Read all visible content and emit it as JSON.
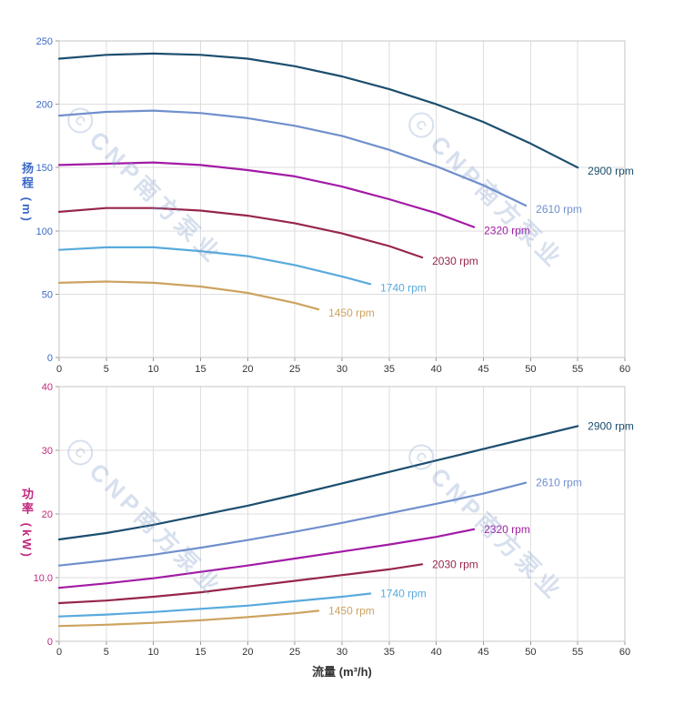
{
  "watermark": {
    "text": "CNP南方泵业",
    "logo": "C"
  },
  "colors": {
    "grid": "#dedede",
    "border": "#c6c6c6",
    "tick": "#999999",
    "x_tick": "#333333"
  },
  "chart_data": [
    {
      "id": "head",
      "type": "line",
      "title": "",
      "ylabel": "扬程 (m)",
      "xlabel": "",
      "x_range": [
        0,
        60
      ],
      "y_range": [
        0,
        250
      ],
      "x_ticks": [
        0,
        5,
        10,
        15,
        20,
        25,
        30,
        35,
        40,
        45,
        50,
        55,
        60
      ],
      "x_tick_labels": [
        "0",
        "5",
        "10",
        "15",
        "20",
        "25",
        "30",
        "35",
        "40",
        "45",
        "50",
        "55",
        "60"
      ],
      "y_ticks": [
        0,
        50,
        100,
        150,
        200,
        250
      ],
      "y_tick_labels": [
        "0",
        "50",
        "100",
        "150",
        "200",
        "250"
      ],
      "axis_color": "#3a68c8",
      "grid": true,
      "legend_position": "end-of-curve",
      "label_offset": [
        11,
        8
      ],
      "series": [
        {
          "name": "2900 rpm",
          "color": "#1c4e6e",
          "x": [
            0,
            5,
            10,
            15,
            20,
            25,
            30,
            35,
            40,
            45,
            50,
            55
          ],
          "y": [
            236,
            239,
            240,
            239,
            236,
            230,
            222,
            212,
            200,
            186,
            169,
            150
          ]
        },
        {
          "name": "2610 rpm",
          "color": "#708fcd",
          "x": [
            0,
            5,
            10,
            15,
            20,
            25,
            30,
            35,
            40,
            45,
            49.5
          ],
          "y": [
            191,
            194,
            195,
            193,
            189,
            183,
            175,
            164,
            151,
            136,
            120
          ]
        },
        {
          "name": "2320 rpm",
          "color": "#a21ba5",
          "x": [
            0,
            5,
            10,
            15,
            20,
            25,
            30,
            35,
            40,
            44
          ],
          "y": [
            152,
            153,
            154,
            152,
            148,
            143,
            135,
            125,
            114,
            103
          ]
        },
        {
          "name": "2030 rpm",
          "color": "#97264b",
          "x": [
            0,
            5,
            10,
            15,
            20,
            25,
            30,
            35,
            38.5
          ],
          "y": [
            115,
            118,
            118,
            116,
            112,
            106,
            98,
            88,
            79
          ]
        },
        {
          "name": "1740 rpm",
          "color": "#58aadc",
          "x": [
            0,
            5,
            10,
            15,
            20,
            25,
            30,
            33
          ],
          "y": [
            85,
            87,
            87,
            84,
            80,
            73,
            64,
            58
          ]
        },
        {
          "name": "1450 rpm",
          "color": "#cda360",
          "x": [
            0,
            5,
            10,
            15,
            20,
            25,
            27.5
          ],
          "y": [
            59,
            60,
            59,
            56,
            51,
            43,
            38
          ]
        }
      ]
    },
    {
      "id": "power",
      "type": "line",
      "title": "",
      "ylabel": "功率 (kW)",
      "xlabel": "流量 (m³/h)",
      "x_range": [
        0,
        60
      ],
      "y_range": [
        0,
        40
      ],
      "x_ticks": [
        0,
        5,
        10,
        15,
        20,
        25,
        30,
        35,
        40,
        45,
        50,
        55,
        60
      ],
      "x_tick_labels": [
        "0",
        "5",
        "10",
        "15",
        "20",
        "25",
        "30",
        "35",
        "40",
        "45",
        "50",
        "55",
        "60"
      ],
      "y_ticks": [
        0,
        10,
        20,
        30,
        40
      ],
      "y_tick_labels": [
        "0",
        "10.0",
        "20",
        "30",
        "40"
      ],
      "axis_color": "#c2277e",
      "grid": true,
      "legend_position": "end-of-curve",
      "label_offset": [
        11,
        4
      ],
      "series": [
        {
          "name": "2900 rpm",
          "color": "#1c4e6e",
          "x": [
            0,
            5,
            10,
            15,
            20,
            25,
            30,
            35,
            40,
            45,
            50,
            55
          ],
          "y": [
            16,
            17,
            18.3,
            19.8,
            21.3,
            23,
            24.8,
            26.6,
            28.4,
            30.2,
            32,
            33.8
          ]
        },
        {
          "name": "2610 rpm",
          "color": "#708fcd",
          "x": [
            0,
            5,
            10,
            15,
            20,
            25,
            30,
            35,
            40,
            45,
            49.5
          ],
          "y": [
            11.9,
            12.7,
            13.6,
            14.7,
            15.9,
            17.2,
            18.6,
            20.1,
            21.6,
            23.2,
            24.9
          ]
        },
        {
          "name": "2320 rpm",
          "color": "#a21ba5",
          "x": [
            0,
            5,
            10,
            15,
            20,
            25,
            30,
            35,
            40,
            44
          ],
          "y": [
            8.4,
            9.1,
            9.9,
            10.9,
            11.9,
            13,
            14.1,
            15.2,
            16.4,
            17.6
          ]
        },
        {
          "name": "2030 rpm",
          "color": "#97264b",
          "x": [
            0,
            5,
            10,
            15,
            20,
            25,
            30,
            35,
            38.5
          ],
          "y": [
            6,
            6.4,
            7,
            7.7,
            8.6,
            9.5,
            10.4,
            11.3,
            12.1
          ]
        },
        {
          "name": "1740 rpm",
          "color": "#58aadc",
          "x": [
            0,
            5,
            10,
            15,
            20,
            25,
            30,
            33
          ],
          "y": [
            3.9,
            4.2,
            4.6,
            5.1,
            5.6,
            6.3,
            7,
            7.5
          ]
        },
        {
          "name": "1450 rpm",
          "color": "#cda360",
          "x": [
            0,
            5,
            10,
            15,
            20,
            25,
            27.5
          ],
          "y": [
            2.4,
            2.6,
            2.9,
            3.3,
            3.8,
            4.4,
            4.8
          ]
        }
      ]
    }
  ]
}
